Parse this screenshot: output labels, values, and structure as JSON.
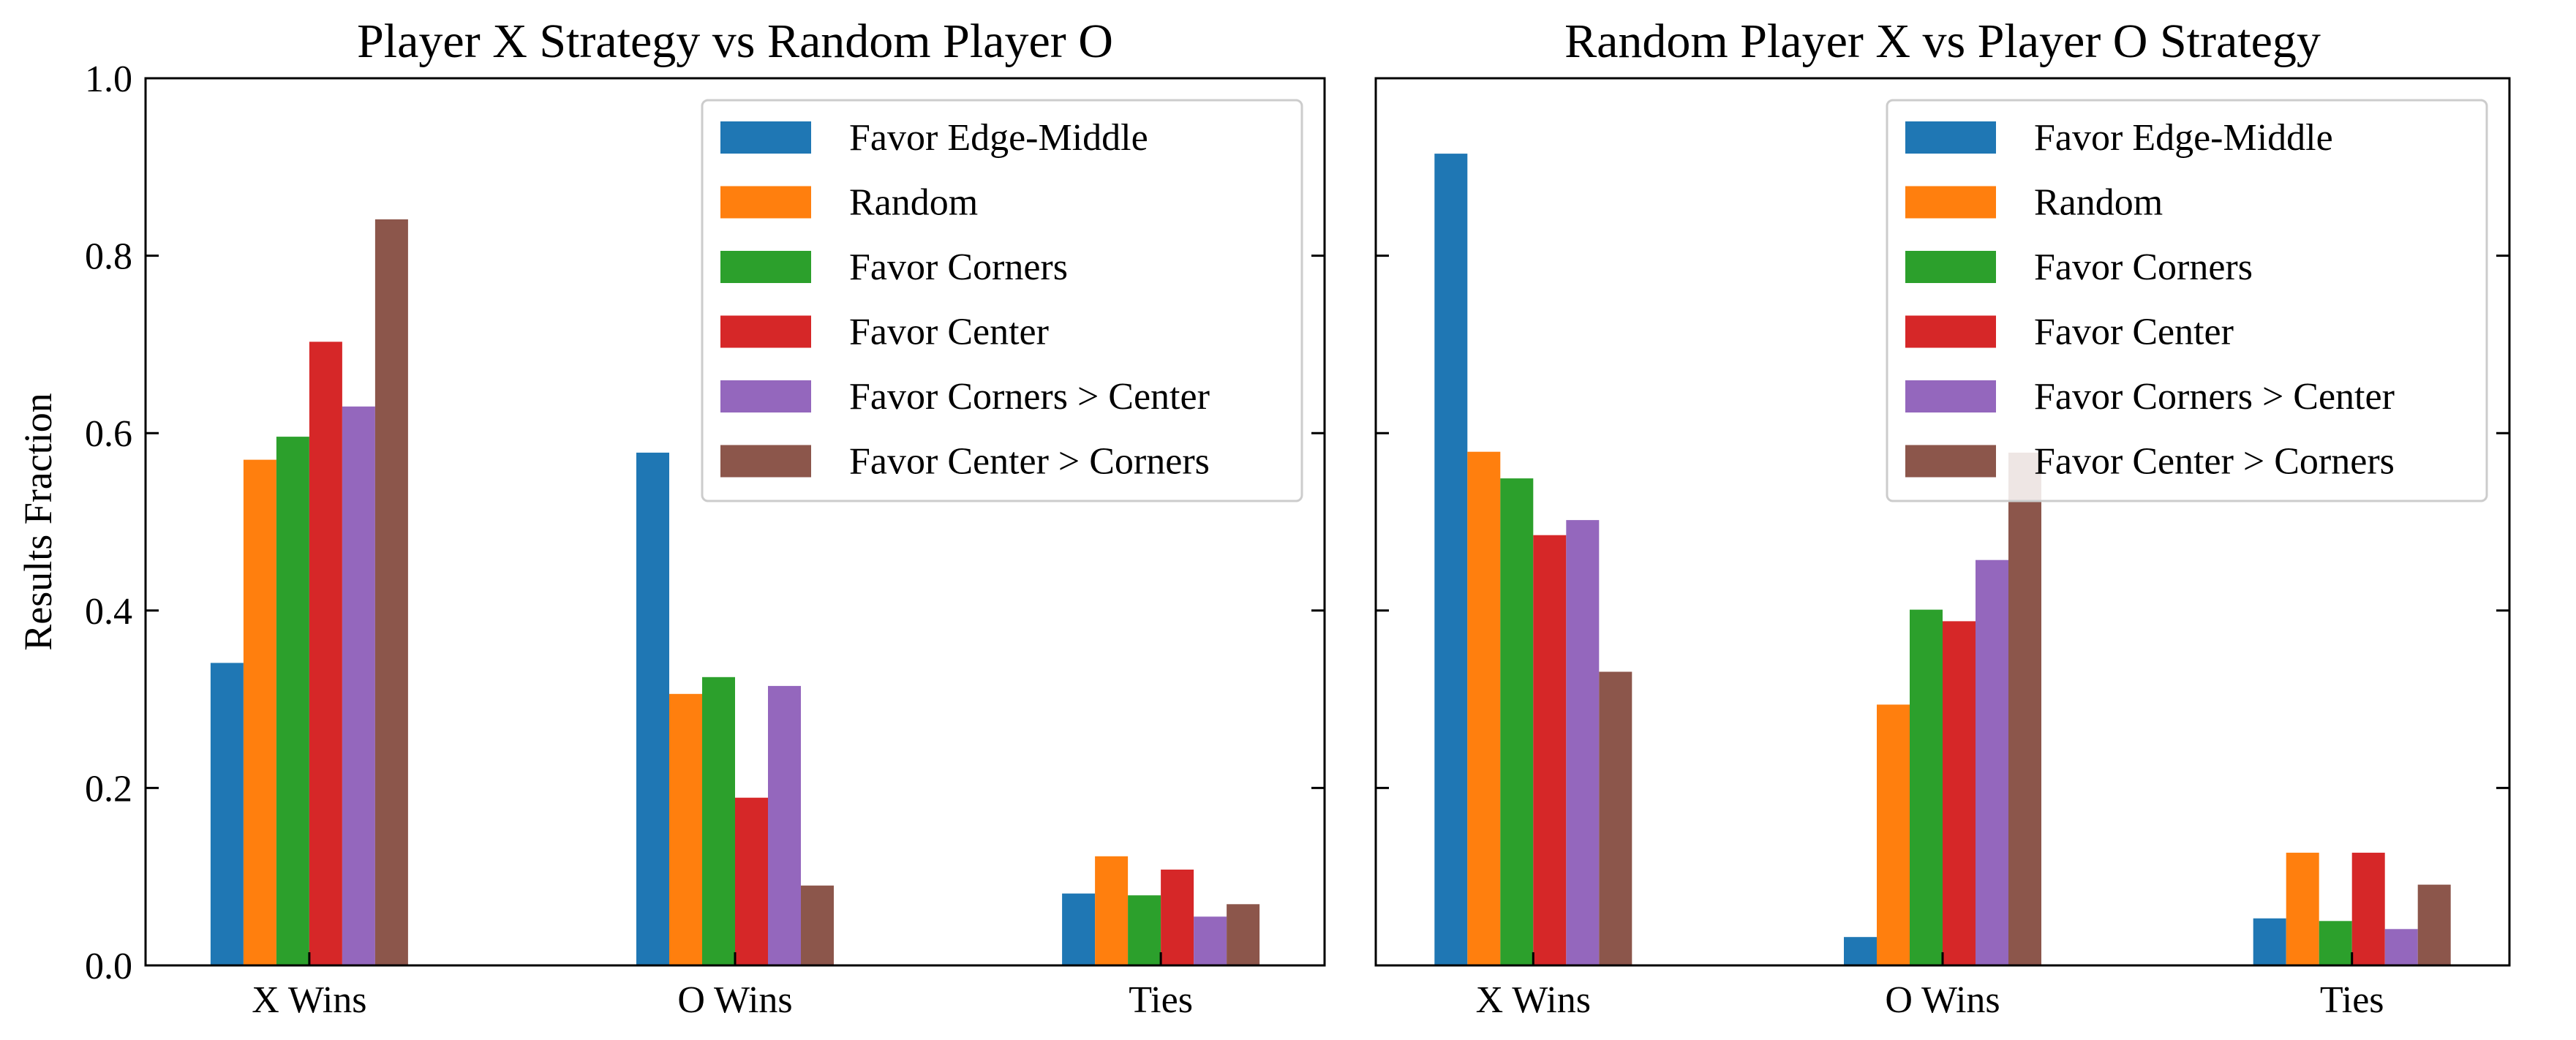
{
  "chart_data": [
    {
      "type": "bar",
      "title": "Player X Strategy vs Random Player O",
      "xlabel": "",
      "ylabel": "Results Fraction",
      "ylim": [
        0,
        1.0
      ],
      "yticks": [
        "0.0",
        "0.2",
        "0.4",
        "0.6",
        "0.8",
        "1.0"
      ],
      "categories": [
        "X Wins",
        "O Wins",
        "Ties"
      ],
      "legend_position": "top-right",
      "series": [
        {
          "name": "Favor Edge-Middle",
          "color": "#1f77b4",
          "values": [
            0.341,
            0.578,
            0.081
          ]
        },
        {
          "name": "Random",
          "color": "#ff7f0e",
          "values": [
            0.57,
            0.306,
            0.123
          ]
        },
        {
          "name": "Favor Corners",
          "color": "#2ca02c",
          "values": [
            0.596,
            0.325,
            0.079
          ]
        },
        {
          "name": "Favor Center",
          "color": "#d62728",
          "values": [
            0.703,
            0.189,
            0.108
          ]
        },
        {
          "name": "Favor Corners > Center",
          "color": "#9467bd",
          "values": [
            0.63,
            0.315,
            0.055
          ]
        },
        {
          "name": "Favor Center > Corners",
          "color": "#8c564b",
          "values": [
            0.841,
            0.09,
            0.069
          ]
        }
      ]
    },
    {
      "type": "bar",
      "title": "Random Player X vs Player O Strategy",
      "xlabel": "",
      "ylabel": "",
      "ylim": [
        0,
        1.0
      ],
      "categories": [
        "X Wins",
        "O Wins",
        "Ties"
      ],
      "legend_position": "top-right",
      "series": [
        {
          "name": "Favor Edge-Middle",
          "color": "#1f77b4",
          "values": [
            0.915,
            0.032,
            0.053
          ]
        },
        {
          "name": "Random",
          "color": "#ff7f0e",
          "values": [
            0.579,
            0.294,
            0.127
          ]
        },
        {
          "name": "Favor Corners",
          "color": "#2ca02c",
          "values": [
            0.549,
            0.401,
            0.05
          ]
        },
        {
          "name": "Favor Center",
          "color": "#d62728",
          "values": [
            0.485,
            0.388,
            0.127
          ]
        },
        {
          "name": "Favor Corners > Center",
          "color": "#9467bd",
          "values": [
            0.502,
            0.457,
            0.041
          ]
        },
        {
          "name": "Favor Center > Corners",
          "color": "#8c564b",
          "values": [
            0.331,
            0.578,
            0.091
          ]
        }
      ]
    }
  ]
}
